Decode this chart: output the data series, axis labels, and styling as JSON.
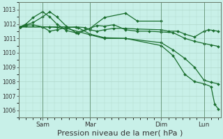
{
  "bg_color": "#c8f0e8",
  "grid_color": "#b0d8cc",
  "line_color": "#1a6e2e",
  "vline_color": "#5a8a6a",
  "xlabel": "Pression niveau de la mer( hPa )",
  "xlabel_fontsize": 8,
  "ylim": [
    1005.5,
    1013.5
  ],
  "yticks": [
    1006,
    1007,
    1008,
    1009,
    1010,
    1011,
    1012,
    1013
  ],
  "xlim": [
    0,
    8.5
  ],
  "xtick_labels": [
    "Sam",
    "Mar",
    "Dim",
    "Lun"
  ],
  "xtick_positions": [
    1.0,
    3.0,
    6.0,
    7.8
  ],
  "vline_positions": [
    1.0,
    3.0,
    6.0,
    7.8
  ],
  "series1_x": [
    0.05,
    0.3,
    0.6,
    1.0,
    1.3,
    1.6,
    2.0,
    2.4,
    2.8,
    3.0,
    3.3,
    3.6,
    4.0,
    4.5,
    5.0,
    6.0,
    6.3,
    6.7,
    7.0,
    7.4,
    7.8,
    8.0,
    8.2,
    8.4
  ],
  "series1_y": [
    1011.8,
    1011.9,
    1011.95,
    1011.8,
    1011.5,
    1011.6,
    1011.75,
    1011.8,
    1011.75,
    1011.6,
    1011.5,
    1011.6,
    1011.7,
    1011.7,
    1011.65,
    1011.6,
    1011.5,
    1011.5,
    1011.3,
    1011.1,
    1011.5,
    1011.6,
    1011.55,
    1011.5
  ],
  "series2_x": [
    0.05,
    0.3,
    0.6,
    1.0,
    1.3,
    1.6,
    2.0,
    2.5,
    3.0,
    3.3,
    3.6,
    4.0,
    4.5,
    5.0,
    5.5,
    6.0,
    6.5,
    7.0,
    7.4,
    7.8,
    8.1,
    8.4
  ],
  "series2_y": [
    1011.8,
    1012.0,
    1012.45,
    1012.85,
    1012.5,
    1012.0,
    1011.55,
    1011.35,
    1011.7,
    1011.9,
    1011.85,
    1011.95,
    1011.6,
    1011.5,
    1011.5,
    1011.45,
    1011.4,
    1011.0,
    1010.8,
    1010.65,
    1010.55,
    1010.45
  ],
  "series3_x": [
    0.05,
    1.0,
    1.3,
    1.6,
    2.0,
    2.5,
    3.0,
    3.6,
    4.5,
    6.0,
    6.5,
    7.0,
    7.4,
    7.8,
    8.1,
    8.4
  ],
  "series3_y": [
    1011.8,
    1011.8,
    1011.8,
    1011.8,
    1011.8,
    1011.75,
    1011.3,
    1011.05,
    1011.0,
    1010.7,
    1010.2,
    1009.6,
    1009.0,
    1008.1,
    1007.95,
    1007.85
  ],
  "series4_x": [
    0.05,
    1.0,
    1.3,
    2.0,
    3.0,
    3.6,
    4.5,
    6.0,
    6.5,
    7.0,
    7.4,
    7.8,
    8.1,
    8.25,
    8.4
  ],
  "series4_y": [
    1011.8,
    1011.8,
    1011.8,
    1011.7,
    1011.25,
    1011.0,
    1011.0,
    1010.5,
    1009.8,
    1008.5,
    1008.0,
    1007.85,
    1007.65,
    1006.45,
    1006.1
  ],
  "series5_x": [
    0.05,
    0.6,
    1.0,
    1.3,
    1.6,
    2.0,
    2.4,
    3.0,
    3.6,
    4.5,
    5.0,
    6.0
  ],
  "series5_y": [
    1011.8,
    1012.1,
    1012.5,
    1012.85,
    1012.5,
    1011.85,
    1011.4,
    1011.7,
    1012.45,
    1012.75,
    1012.2,
    1012.2
  ]
}
